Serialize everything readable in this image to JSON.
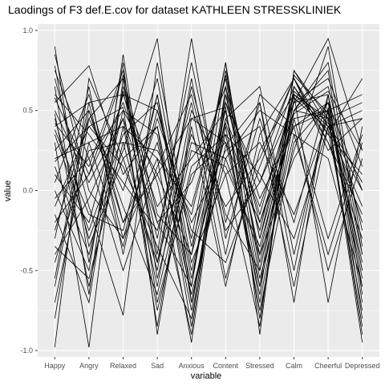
{
  "chart_data": {
    "type": "line",
    "title": "Laodings of F3 def.E.cov for dataset KATHLEEN STRESSKLINIEK",
    "xlabel": "variable",
    "ylabel": "value",
    "categories": [
      "Happy",
      "Angry",
      "Relaxed",
      "Sad",
      "Anxious",
      "Content",
      "Stressed",
      "Calm",
      "Cheerful",
      "Depressed"
    ],
    "yticks": [
      1.0,
      0.5,
      0.0,
      -0.5,
      -1.0
    ],
    "ytick_labels": [
      "1.0",
      "0.5",
      "0.0",
      "-0.5",
      "-1.0"
    ],
    "ylim": [
      -1.04,
      1.04
    ],
    "grid": true,
    "panel_background": "#ebebeb",
    "grid_color": "#ffffff",
    "line_color": "#000000",
    "series": [
      {
        "values": [
          0.9,
          -0.45,
          0.62,
          -0.3,
          0.8,
          -0.2,
          0.55,
          -0.7,
          0.6,
          -0.4
        ]
      },
      {
        "values": [
          0.75,
          0.2,
          0.5,
          0.1,
          0.45,
          0.3,
          -0.6,
          0.72,
          0.48,
          -0.9
        ]
      },
      {
        "values": [
          0.65,
          -0.65,
          0.85,
          -0.55,
          0.3,
          0.2,
          -0.4,
          0.55,
          0.95,
          0.25
        ]
      },
      {
        "values": [
          0.55,
          0.78,
          0.1,
          0.4,
          -0.85,
          0.65,
          -0.2,
          0.4,
          0.5,
          -0.6
        ]
      },
      {
        "values": [
          0.5,
          0.05,
          0.45,
          -0.2,
          -0.6,
          0.75,
          -0.3,
          0.6,
          0.4,
          0.0
        ]
      },
      {
        "values": [
          0.45,
          -0.3,
          0.25,
          0.95,
          -0.7,
          0.4,
          -0.75,
          0.3,
          0.55,
          -0.5
        ]
      },
      {
        "values": [
          0.4,
          0.55,
          -0.3,
          0.2,
          -0.95,
          0.55,
          0.05,
          0.65,
          0.35,
          0.1
        ]
      },
      {
        "values": [
          0.3,
          -0.98,
          0.7,
          -0.4,
          0.95,
          -0.3,
          0.45,
          -0.2,
          0.6,
          -0.8
        ]
      },
      {
        "values": [
          0.2,
          0.3,
          0.4,
          -0.6,
          0.5,
          0.1,
          -0.85,
          0.75,
          0.4,
          0.45
        ]
      },
      {
        "values": [
          0.1,
          -0.2,
          0.6,
          0.5,
          -0.3,
          0.8,
          -0.5,
          0.5,
          0.45,
          -0.2
        ]
      },
      {
        "values": [
          0.05,
          0.6,
          -0.2,
          0.3,
          -0.65,
          0.2,
          0.5,
          0.35,
          -0.4,
          0.3
        ]
      },
      {
        "values": [
          0.0,
          -0.5,
          0.8,
          -0.9,
          0.4,
          -0.6,
          0.35,
          0.7,
          0.3,
          -0.3
        ]
      },
      {
        "values": [
          -0.1,
          0.4,
          0.15,
          -0.35,
          -0.8,
          0.45,
          -0.1,
          0.55,
          0.6,
          -0.7
        ]
      },
      {
        "values": [
          -0.2,
          0.1,
          0.55,
          -0.1,
          0.2,
          0.5,
          -0.7,
          0.45,
          0.5,
          0.6
        ]
      },
      {
        "values": [
          -0.3,
          0.65,
          -0.4,
          0.6,
          -0.5,
          0.35,
          0.1,
          -0.3,
          0.4,
          -0.1
        ]
      },
      {
        "values": [
          -0.45,
          0.25,
          0.3,
          -0.5,
          0.7,
          -0.4,
          0.6,
          0.4,
          -0.5,
          0.2
        ]
      },
      {
        "values": [
          -0.6,
          0.5,
          -0.2,
          0.1,
          -0.4,
          0.8,
          -0.9,
          0.75,
          0.45,
          -0.95
        ]
      },
      {
        "values": [
          -0.8,
          0.45,
          0.7,
          -0.7,
          0.1,
          0.3,
          -0.2,
          0.5,
          0.8,
          -0.4
        ]
      },
      {
        "values": [
          -0.98,
          0.7,
          0.2,
          0.4,
          -0.6,
          0.6,
          -0.4,
          0.2,
          0.55,
          0.0
        ]
      },
      {
        "values": [
          0.85,
          0.0,
          -0.3,
          0.45,
          -0.2,
          0.25,
          0.4,
          -0.6,
          0.4,
          0.5
        ]
      },
      {
        "values": [
          0.7,
          -0.1,
          -0.78,
          0.8,
          -0.35,
          0.5,
          -0.6,
          0.35,
          0.2,
          -0.6
        ]
      },
      {
        "values": [
          0.6,
          0.35,
          0.05,
          -0.25,
          0.55,
          -0.55,
          0.25,
          0.6,
          -0.7,
          0.4
        ]
      },
      {
        "values": [
          0.48,
          -0.6,
          0.4,
          0.2,
          -0.1,
          0.7,
          -0.45,
          0.5,
          0.65,
          -0.25
        ]
      },
      {
        "values": [
          0.42,
          0.15,
          0.75,
          -0.45,
          0.35,
          -0.1,
          0.2,
          0.7,
          0.35,
          0.7
        ]
      },
      {
        "values": [
          0.35,
          -0.25,
          0.35,
          0.55,
          -0.55,
          0.45,
          0.65,
          -0.4,
          0.5,
          -0.45
        ]
      },
      {
        "values": [
          0.25,
          0.5,
          -0.1,
          -0.65,
          0.25,
          0.15,
          -0.35,
          0.45,
          -0.3,
          0.35
        ]
      },
      {
        "values": [
          0.15,
          -0.4,
          0.5,
          0.35,
          -0.75,
          0.55,
          -0.15,
          0.6,
          0.45,
          -0.85
        ]
      },
      {
        "values": [
          -0.05,
          0.2,
          -0.5,
          0.15,
          0.6,
          -0.25,
          0.05,
          0.55,
          0.7,
          0.15
        ]
      },
      {
        "values": [
          -0.15,
          -0.7,
          0.65,
          -0.2,
          0.05,
          0.65,
          -0.55,
          0.25,
          0.9,
          -0.35
        ]
      },
      {
        "values": [
          -0.25,
          0.45,
          0.0,
          0.7,
          -0.45,
          0.1,
          0.3,
          -0.15,
          0.45,
          0.55
        ]
      },
      {
        "values": [
          -0.4,
          -0.05,
          0.45,
          -0.75,
          0.15,
          0.35,
          -0.65,
          0.65,
          0.3,
          -0.15
        ]
      },
      {
        "values": [
          -0.55,
          0.55,
          0.6,
          0.05,
          -0.9,
          0.6,
          -0.05,
          0.4,
          0.55,
          -0.5
        ]
      },
      {
        "values": [
          -0.7,
          0.3,
          -0.35,
          0.5,
          -0.25,
          -0.45,
          0.15,
          0.7,
          0.25,
          0.45
        ]
      },
      {
        "values": [
          0.78,
          -0.35,
          0.2,
          -0.45,
          0.65,
          -0.15,
          -0.5,
          0.5,
          0.75,
          -0.65
        ]
      },
      {
        "values": [
          0.58,
          0.1,
          0.72,
          -0.15,
          -0.4,
          0.42,
          -0.25,
          0.62,
          0.42,
          0.05
        ]
      },
      {
        "values": [
          0.38,
          -0.15,
          -0.25,
          0.6,
          -0.7,
          0.28,
          0.55,
          -0.5,
          0.52,
          -0.55
        ]
      },
      {
        "values": [
          0.18,
          0.4,
          0.52,
          -0.85,
          0.45,
          0.52,
          -0.8,
          0.58,
          0.38,
          -0.75
        ]
      },
      {
        "values": [
          -0.35,
          -0.55,
          0.3,
          0.25,
          -0.15,
          0.72,
          -0.3,
          0.48,
          0.62,
          0.25
        ]
      }
    ]
  }
}
